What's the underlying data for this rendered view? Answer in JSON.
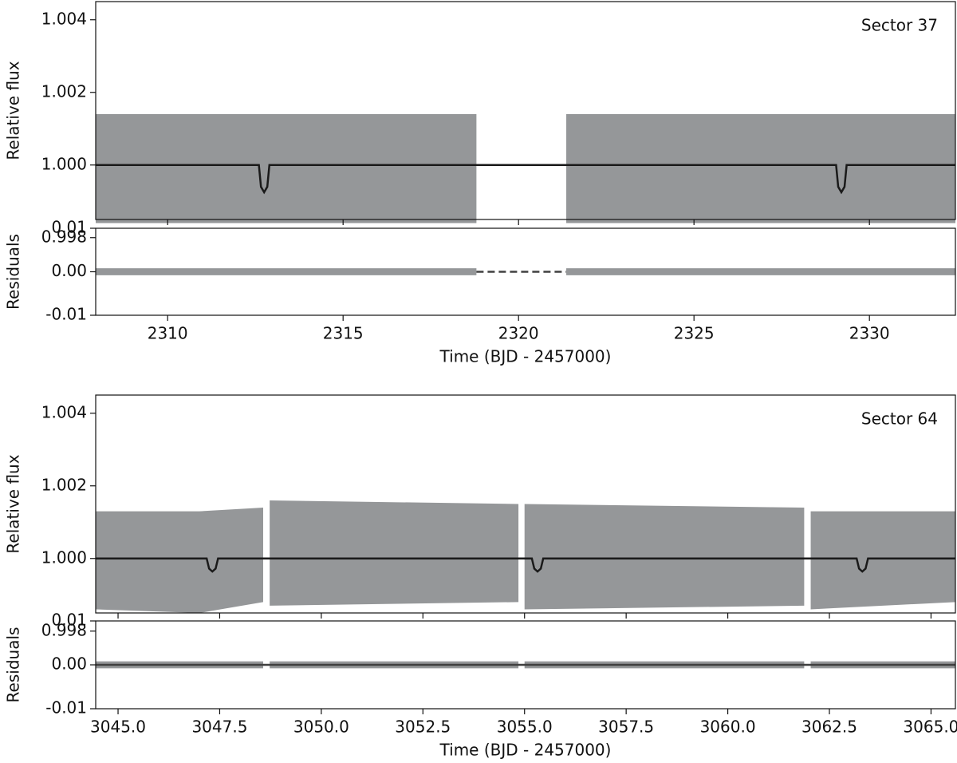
{
  "chart_data": [
    {
      "type": "line",
      "annotation": "Sector 37",
      "ylabel": "Relative flux",
      "xlim": [
        2307.95,
        2332.45
      ],
      "ylim": [
        0.9985,
        1.0045
      ],
      "yticks": [
        0.998,
        {
          "value": 1,
          "label": "1.000"
        },
        1.002,
        1.004
      ],
      "series": [
        {
          "color": "#8a8c8e",
          "x": [
            2307.95,
            2313.2,
            2313.3,
            2318.8,
            null,
            2321.36,
            2329.0,
            2329.1,
            2332.45
          ],
          "upper": [
            1.0014,
            1.0014,
            1.0014,
            1.0014,
            null,
            1.0014,
            1.0014,
            1.0014,
            1.0014
          ],
          "lower": [
            0.9984,
            0.9984,
            0.9984,
            0.9984,
            null,
            0.9984,
            0.9984,
            0.9984,
            0.9984
          ]
        },
        {
          "color": "#1a1a1a",
          "x": [
            2307.95,
            2312.6,
            2312.66,
            2312.75,
            2312.84,
            2312.9,
            2329.05,
            2329.11,
            2329.2,
            2329.29,
            2329.35,
            2332.45
          ],
          "values": [
            1,
            1,
            0.9994,
            0.99925,
            0.9994,
            1,
            1,
            0.9994,
            0.99925,
            0.9994,
            1,
            1
          ]
        }
      ]
    },
    {
      "type": "line",
      "ylabel": "Residuals",
      "xlabel": "Time (BJD - 2457000)",
      "xlim": [
        2307.95,
        2332.45
      ],
      "ylim": [
        -0.01,
        0.01
      ],
      "xticks": [
        2310,
        2315,
        2320,
        2325,
        2330
      ],
      "yticks": [
        -0.01,
        {
          "value": 0,
          "label": "0.00"
        },
        0.01
      ],
      "series": [
        {
          "color": "#8a8c8e",
          "x": [
            2307.95,
            2318.8,
            null,
            2321.36,
            2332.45
          ],
          "upper": [
            0.0008,
            0.0008,
            null,
            0.0008,
            0.0008
          ],
          "lower": [
            -0.0008,
            -0.0008,
            null,
            -0.0008,
            -0.0008
          ]
        },
        {
          "color": "#404040",
          "dashed": true,
          "x": [
            2318.8,
            2321.36
          ],
          "values": [
            0,
            0
          ]
        }
      ]
    },
    {
      "type": "line",
      "annotation": "Sector 64",
      "ylabel": "Relative flux",
      "xlim": [
        3044.45,
        3065.6
      ],
      "ylim": [
        0.9985,
        1.0045
      ],
      "yticks": [
        0.998,
        {
          "value": 1,
          "label": "1.000"
        },
        1.002,
        1.004
      ],
      "series": [
        {
          "color": "#8a8c8e",
          "x": [
            3044.45,
            3047.0,
            3048.57,
            null,
            3048.73,
            3054.85,
            null,
            3055.0,
            3061.88,
            null,
            3062.04,
            3065.6
          ],
          "upper": [
            1.0013,
            1.0013,
            1.0014,
            null,
            1.0016,
            1.0015,
            null,
            1.0015,
            1.0014,
            null,
            1.0013,
            1.0013
          ],
          "lower": [
            0.9986,
            0.9985,
            0.9988,
            null,
            0.9987,
            0.9988,
            null,
            0.9986,
            0.9987,
            null,
            0.9986,
            0.9988
          ]
        },
        {
          "color": "#1a1a1a",
          "x": [
            3044.45,
            3047.18,
            3047.24,
            3047.32,
            3047.4,
            3047.46,
            3055.18,
            3055.24,
            3055.32,
            3055.4,
            3055.46,
            3063.17,
            3063.23,
            3063.31,
            3063.39,
            3063.45,
            3065.6
          ],
          "values": [
            1,
            1,
            0.99972,
            0.99964,
            0.99972,
            1,
            1,
            0.99972,
            0.99964,
            0.99972,
            1,
            1,
            0.99972,
            0.99964,
            0.99972,
            1,
            1
          ]
        }
      ]
    },
    {
      "type": "line",
      "ylabel": "Residuals",
      "xlabel": "Time (BJD - 2457000)",
      "xlim": [
        3044.45,
        3065.6
      ],
      "ylim": [
        -0.01,
        0.01
      ],
      "xticks": [
        {
          "value": 3045,
          "label": "3045.0"
        },
        3047.5,
        {
          "value": 3050,
          "label": "3050.0"
        },
        3052.5,
        {
          "value": 3055,
          "label": "3055.0"
        },
        3057.5,
        {
          "value": 3060,
          "label": "3060.0"
        },
        3062.5,
        {
          "value": 3065,
          "label": "3065.0"
        }
      ],
      "yticks": [
        -0.01,
        {
          "value": 0,
          "label": "0.00"
        },
        0.01
      ],
      "series": [
        {
          "color": "#8a8c8e",
          "x": [
            3044.45,
            3048.57,
            null,
            3048.73,
            3054.85,
            null,
            3055.0,
            3061.88,
            null,
            3062.04,
            3065.6
          ],
          "upper": [
            0.0008,
            0.0008,
            null,
            0.0008,
            0.0008,
            null,
            0.0008,
            0.0008,
            null,
            0.0008,
            0.0008
          ],
          "lower": [
            -0.0008,
            -0.0008,
            null,
            -0.0008,
            -0.0008,
            null,
            -0.0008,
            -0.0008,
            null,
            -0.0008,
            -0.0008
          ]
        },
        {
          "color": "#404040",
          "x": [
            3044.45,
            3065.6
          ],
          "values": [
            0,
            0
          ]
        }
      ]
    }
  ]
}
